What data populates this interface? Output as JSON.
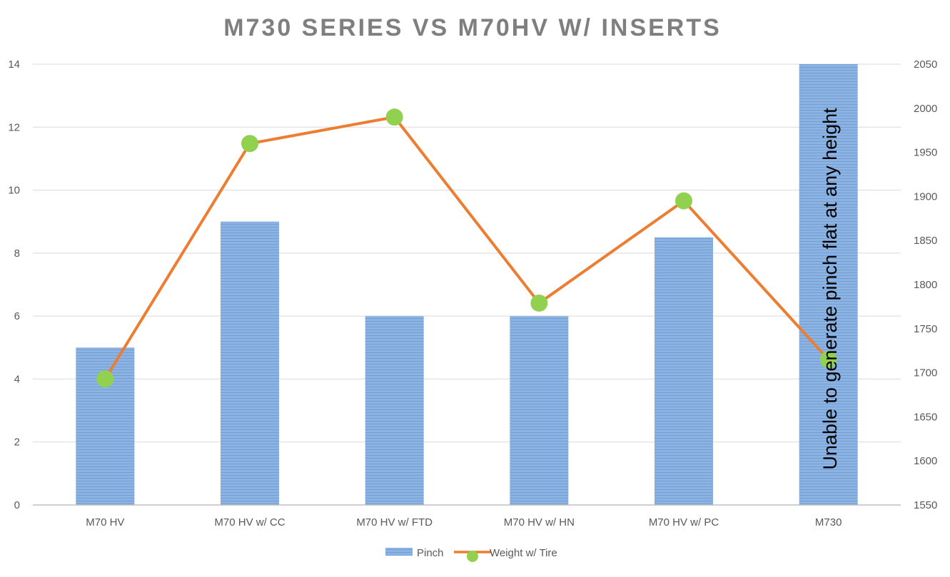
{
  "chart_data": {
    "type": "bar",
    "title": "M730 SERIES VS M70HV W/ INSERTS",
    "categories": [
      "M70 HV",
      "M70 HV w/ CC",
      "M70 HV w/ FTD",
      "M70 HV w/ HN",
      "M70 HV w/ PC",
      "M730"
    ],
    "series": [
      {
        "name": "Pinch",
        "type": "bar",
        "axis": "left",
        "values": [
          5,
          9,
          6,
          6,
          8.5,
          14
        ],
        "color": "#8db3e2"
      },
      {
        "name": "Weight w/ Tire",
        "type": "line",
        "axis": "right",
        "values": [
          1693,
          1960,
          1990,
          1779,
          1895,
          1715
        ],
        "line_color": "#ed7d31",
        "marker_color": "#92d050"
      }
    ],
    "left_axis": {
      "ylim": [
        0,
        14
      ],
      "ticks": [
        "0",
        "2",
        "4",
        "6",
        "8",
        "10",
        "12",
        "14"
      ]
    },
    "right_axis": {
      "ylim": [
        1550,
        2050
      ],
      "ticks": [
        "1550",
        "1600",
        "1650",
        "1700",
        "1750",
        "1800",
        "1850",
        "1900",
        "1950",
        "2000",
        "2050"
      ]
    },
    "annotation": "Unable to generate pinch flat at any height",
    "grid": true,
    "legend_position": "bottom"
  }
}
